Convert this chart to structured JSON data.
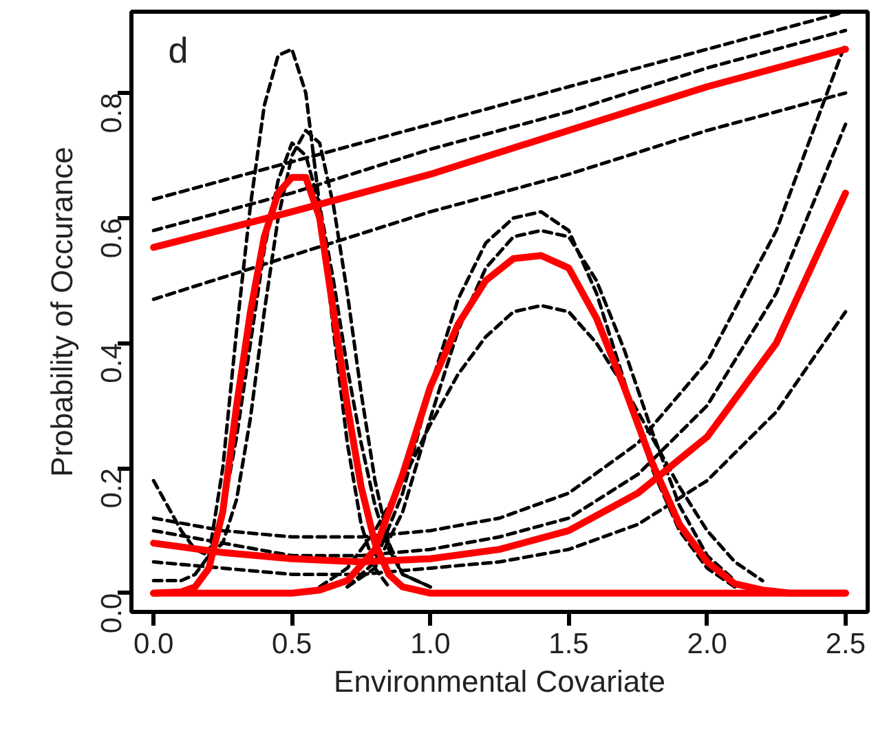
{
  "chart_data": {
    "type": "line",
    "xlabel": "Environmental Covariate",
    "ylabel": "Probability of Occurance",
    "annotations": [
      "d"
    ],
    "xlim": [
      -0.08,
      2.58
    ],
    "ylim": [
      -0.03,
      0.93
    ],
    "xticks": [
      {
        "value": 0,
        "label": "0.0"
      },
      0.5,
      {
        "value": 1,
        "label": "1.0"
      },
      1.5,
      {
        "value": 2,
        "label": "2.0"
      },
      2.5
    ],
    "yticks": [
      {
        "value": 0,
        "label": "0.0"
      },
      0.2,
      0.4,
      0.6,
      0.8
    ],
    "series": [
      {
        "color": "#000000",
        "line_style": "dashed",
        "x": [
          0,
          0.5,
          1.0,
          1.5,
          2.0,
          2.5
        ],
        "values": [
          0.63,
          0.69,
          0.75,
          0.81,
          0.87,
          0.93
        ]
      },
      {
        "color": "#000000",
        "line_style": "dashed",
        "x": [
          0,
          0.5,
          1.0,
          1.5,
          2.0,
          2.5
        ],
        "values": [
          0.47,
          0.54,
          0.61,
          0.67,
          0.74,
          0.8
        ]
      },
      {
        "color": "#000000",
        "line_style": "dashed",
        "x": [
          0,
          0.5,
          1.0,
          1.5,
          2.0,
          2.5
        ],
        "values": [
          0.58,
          0.64,
          0.71,
          0.77,
          0.84,
          0.9
        ]
      },
      {
        "color": "#000000",
        "line_style": "dashed",
        "x": [
          0.2,
          0.25,
          0.3,
          0.35,
          0.4,
          0.45,
          0.5,
          0.55,
          0.6,
          0.65,
          0.7,
          0.75,
          0.8,
          0.85
        ],
        "values": [
          0.06,
          0.2,
          0.42,
          0.62,
          0.78,
          0.86,
          0.87,
          0.8,
          0.62,
          0.42,
          0.24,
          0.11,
          0.04,
          0.01
        ]
      },
      {
        "color": "#000000",
        "line_style": "dashed",
        "x": [
          0,
          0.1,
          0.15,
          0.2,
          0.25,
          0.3,
          0.35,
          0.4,
          0.45,
          0.5,
          0.55,
          0.6,
          0.65,
          0.7,
          0.75,
          0.8,
          0.85,
          0.9,
          1.0
        ],
        "values": [
          0.02,
          0.02,
          0.03,
          0.06,
          0.13,
          0.25,
          0.4,
          0.55,
          0.66,
          0.72,
          0.7,
          0.62,
          0.5,
          0.36,
          0.24,
          0.14,
          0.07,
          0.03,
          0.01
        ]
      },
      {
        "color": "#000000",
        "line_style": "dashed",
        "x": [
          0,
          0.1,
          0.15,
          0.2,
          0.25,
          0.3,
          0.35,
          0.4,
          0.45,
          0.5,
          0.55,
          0.6,
          0.65,
          0.7,
          0.75,
          0.8,
          0.85,
          0.9,
          1.0
        ],
        "values": [
          0.18,
          0.1,
          0.07,
          0.06,
          0.08,
          0.15,
          0.28,
          0.45,
          0.6,
          0.7,
          0.74,
          0.72,
          0.62,
          0.48,
          0.32,
          0.18,
          0.08,
          0.03,
          0.01
        ]
      },
      {
        "color": "#000000",
        "line_style": "dashed",
        "x": [
          0.7,
          0.8,
          0.9,
          1.0,
          1.1,
          1.2,
          1.3,
          1.4,
          1.5,
          1.6,
          1.7,
          1.8,
          1.9,
          2.0,
          2.1
        ],
        "values": [
          0.01,
          0.05,
          0.16,
          0.33,
          0.47,
          0.56,
          0.6,
          0.61,
          0.58,
          0.48,
          0.34,
          0.2,
          0.1,
          0.04,
          0.01
        ]
      },
      {
        "color": "#000000",
        "line_style": "dashed",
        "x": [
          0.6,
          0.7,
          0.8,
          0.9,
          1.0,
          1.1,
          1.2,
          1.3,
          1.4,
          1.5,
          1.6,
          1.7,
          1.8,
          1.9,
          2.0,
          2.1,
          2.2
        ],
        "values": [
          0.01,
          0.04,
          0.1,
          0.18,
          0.27,
          0.35,
          0.41,
          0.45,
          0.46,
          0.45,
          0.4,
          0.33,
          0.25,
          0.17,
          0.1,
          0.05,
          0.02
        ]
      },
      {
        "color": "#000000",
        "line_style": "dashed",
        "x": [
          0.7,
          0.8,
          0.9,
          1.0,
          1.1,
          1.2,
          1.3,
          1.4,
          1.5,
          1.6,
          1.7,
          1.8,
          1.9,
          2.0,
          2.1
        ],
        "values": [
          0.01,
          0.04,
          0.13,
          0.28,
          0.42,
          0.52,
          0.57,
          0.58,
          0.57,
          0.5,
          0.39,
          0.26,
          0.14,
          0.06,
          0.02
        ]
      },
      {
        "color": "#000000",
        "line_style": "dashed",
        "x": [
          0,
          0.25,
          0.5,
          0.75,
          1.0,
          1.25,
          1.5,
          1.75,
          2.0,
          2.25,
          2.5
        ],
        "values": [
          0.12,
          0.1,
          0.09,
          0.09,
          0.1,
          0.12,
          0.16,
          0.24,
          0.37,
          0.58,
          0.88
        ]
      },
      {
        "color": "#000000",
        "line_style": "dashed",
        "x": [
          0,
          0.25,
          0.5,
          0.75,
          1.0,
          1.25,
          1.5,
          1.75,
          2.0,
          2.25,
          2.5
        ],
        "values": [
          0.05,
          0.04,
          0.03,
          0.03,
          0.04,
          0.05,
          0.07,
          0.11,
          0.18,
          0.29,
          0.45
        ]
      },
      {
        "color": "#000000",
        "line_style": "dashed",
        "x": [
          0,
          0.25,
          0.5,
          0.75,
          1.0,
          1.25,
          1.5,
          1.75,
          2.0,
          2.25,
          2.5
        ],
        "values": [
          0.1,
          0.08,
          0.06,
          0.06,
          0.07,
          0.09,
          0.12,
          0.19,
          0.3,
          0.48,
          0.75
        ]
      },
      {
        "color": "#ff0000",
        "line_style": "solid",
        "x": [
          0,
          0.5,
          1.0,
          1.5,
          2.0,
          2.5
        ],
        "values": [
          0.553,
          0.61,
          0.67,
          0.74,
          0.81,
          0.87
        ]
      },
      {
        "color": "#ff0000",
        "line_style": "solid",
        "x": [
          0,
          0.1,
          0.15,
          0.2,
          0.25,
          0.3,
          0.35,
          0.4,
          0.45,
          0.5,
          0.55,
          0.6,
          0.65,
          0.7,
          0.75,
          0.8,
          0.85,
          0.9,
          1.0,
          1.5,
          2.0,
          2.5
        ],
        "values": [
          0,
          0.002,
          0.01,
          0.04,
          0.13,
          0.3,
          0.45,
          0.57,
          0.64,
          0.665,
          0.665,
          0.6,
          0.45,
          0.3,
          0.17,
          0.08,
          0.03,
          0.01,
          0,
          0,
          0,
          0
        ]
      },
      {
        "color": "#ff0000",
        "line_style": "solid",
        "x": [
          0,
          0.5,
          0.6,
          0.7,
          0.8,
          0.9,
          1.0,
          1.1,
          1.2,
          1.3,
          1.4,
          1.5,
          1.6,
          1.7,
          1.8,
          1.9,
          2.0,
          2.1,
          2.2,
          2.3,
          2.5
        ],
        "values": [
          0,
          0,
          0.005,
          0.02,
          0.07,
          0.19,
          0.33,
          0.43,
          0.5,
          0.535,
          0.54,
          0.52,
          0.44,
          0.33,
          0.21,
          0.11,
          0.05,
          0.015,
          0.005,
          0,
          0
        ]
      },
      {
        "color": "#ff0000",
        "line_style": "solid",
        "x": [
          0,
          0.25,
          0.5,
          0.75,
          1.0,
          1.25,
          1.5,
          1.75,
          2.0,
          2.25,
          2.5
        ],
        "values": [
          0.08,
          0.065,
          0.055,
          0.05,
          0.055,
          0.07,
          0.1,
          0.16,
          0.25,
          0.4,
          0.64
        ]
      }
    ]
  }
}
